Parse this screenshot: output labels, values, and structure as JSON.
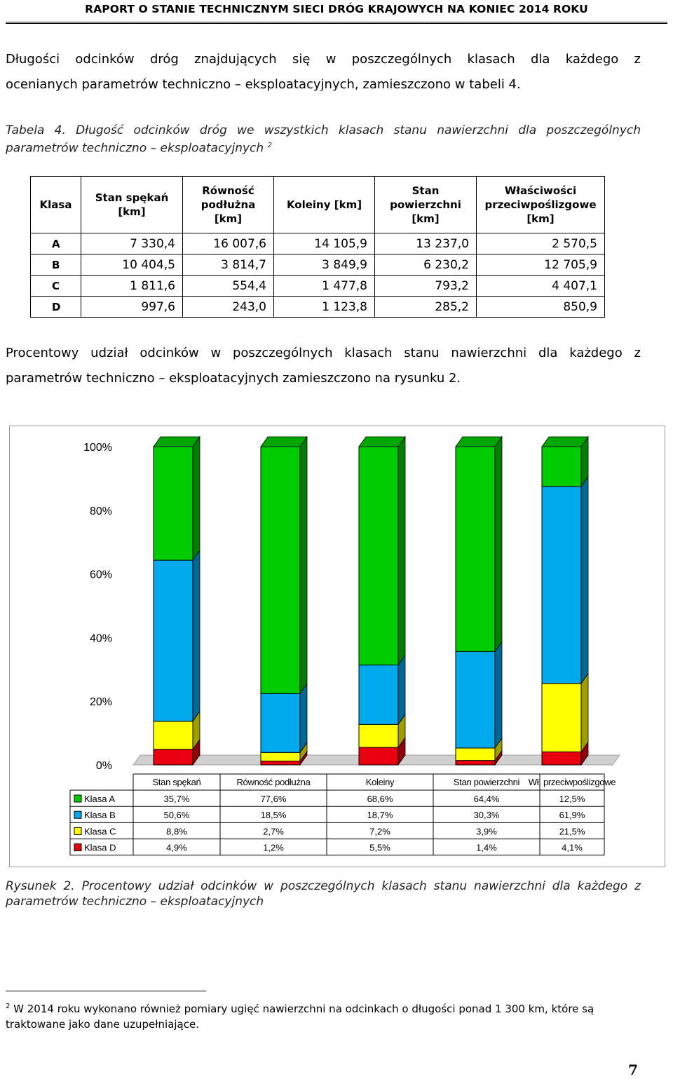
{
  "header": {
    "title": "RAPORT O STANIE TECHNICZNYM SIECI DRÓG KRAJOWYCH NA KONIEC 2014 ROKU"
  },
  "intro": {
    "lines": [
      "Długości odcinków dróg znajdujących się w poszczególnych klasach dla każdego z",
      "ocenianych parametrów techniczno – eksploatacyjnych, zamieszczono w tabeli 4."
    ]
  },
  "table_caption": {
    "line1": "Tabela 4. Długość odcinków dróg we wszystkich klasach stanu nawierzchni dla poszczególnych",
    "line2": "parametrów techniczno – eksploatacyjnych",
    "footnote_mark": "2"
  },
  "table": {
    "headers": [
      "Klasa",
      "Stan spękań [km]",
      "Równość podłużna [km]",
      "Koleiny [km]",
      "Stan powierzchni [km]",
      "Właściwości przeciwpoślizgowe [km]"
    ],
    "rows": [
      [
        "A",
        "7 330,4",
        "16 007,6",
        "14 105,9",
        "13 237,0",
        "2 570,5"
      ],
      [
        "B",
        "10 404,5",
        "3 814,7",
        "3 849,9",
        "6 230,2",
        "12 705,9"
      ],
      [
        "C",
        "1 811,6",
        "554,4",
        "1 477,8",
        "793,2",
        "4 407,1"
      ],
      [
        "D",
        "997,6",
        "243,0",
        "1 123,8",
        "285,2",
        "850,9"
      ]
    ]
  },
  "chart_intro": {
    "lines": [
      "Procentowy udział odcinków w poszczególnych klasach stanu nawierzchni dla każdego z",
      "parametrów techniczno – eksploatacyjnych zamieszczono na rysunku 2."
    ]
  },
  "chart_data": {
    "type": "bar",
    "stacked": true,
    "percent_stacked": true,
    "categories": [
      "Stan spękań",
      "Równość podłużna",
      "Koleiny",
      "Stan powierzchni",
      "Wł. przeciwpoślizgowe"
    ],
    "y_ticks": [
      "0%",
      "20%",
      "40%",
      "60%",
      "80%",
      "100%"
    ],
    "ylim": [
      0,
      100
    ],
    "series": [
      {
        "name": "Klasa A",
        "color": "#00cc00",
        "values": [
          35.7,
          77.6,
          68.6,
          64.4,
          12.5
        ],
        "labels": [
          "35,7%",
          "77,6%",
          "68,6%",
          "64,4%",
          "12,5%"
        ]
      },
      {
        "name": "Klasa B",
        "color": "#00a8ec",
        "values": [
          50.6,
          18.5,
          18.7,
          30.3,
          61.9
        ],
        "labels": [
          "50,6%",
          "18,5%",
          "18,7%",
          "30,3%",
          "61,9%"
        ]
      },
      {
        "name": "Klasa C",
        "color": "#ffff00",
        "values": [
          8.8,
          2.7,
          7.2,
          3.9,
          21.5
        ],
        "labels": [
          "8,8%",
          "2,7%",
          "7,2%",
          "3,9%",
          "21,5%"
        ]
      },
      {
        "name": "Klasa D",
        "color": "#e8000e",
        "values": [
          4.9,
          1.2,
          5.5,
          1.4,
          4.1
        ],
        "labels": [
          "4,9%",
          "1,2%",
          "5,5%",
          "1,4%",
          "4,1%"
        ]
      }
    ],
    "legend": "data-table-below"
  },
  "figure_caption": {
    "line1": "Rysunek 2. Procentowy udział odcinków w poszczególnych klasach stanu nawierzchni dla każdego z",
    "line2": "parametrów techniczno – eksploatacyjnych"
  },
  "footnote": {
    "mark": "2",
    "text": "W 2014 roku wykonano również pomiary ugięć nawierzchni na odcinkach o długości ponad 1 300 km, które są traktowane jako dane uzupełniające."
  },
  "page_number": "7"
}
